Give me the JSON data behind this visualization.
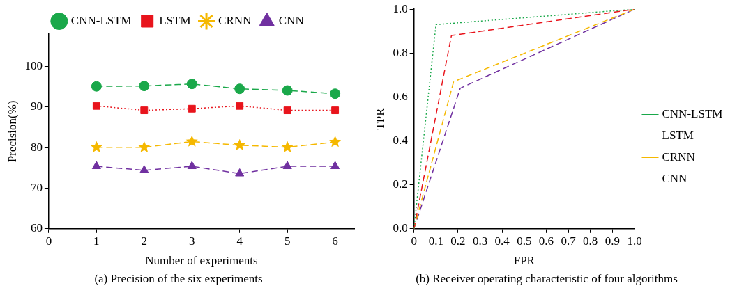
{
  "chart_data": [
    {
      "type": "line",
      "title": "(a) Precision of the six experiments",
      "xlabel": "Number of experiments",
      "ylabel": "Precision(%)",
      "x": [
        1,
        2,
        3,
        4,
        5,
        6
      ],
      "xlim": [
        0,
        6.4
      ],
      "xticks": [
        0,
        1,
        2,
        3,
        4,
        5,
        6
      ],
      "ylim": [
        60,
        108
      ],
      "yticks": [
        60,
        70,
        80,
        90,
        100
      ],
      "grid": false,
      "legend": "top",
      "series": [
        {
          "name": "CNN-LSTM",
          "color": "#1aa84a",
          "marker": "circle",
          "line_style": "dashed",
          "values": [
            95.1,
            95.2,
            95.7,
            94.5,
            94.1,
            93.3
          ]
        },
        {
          "name": "LSTM",
          "color": "#e8141c",
          "marker": "square",
          "line_style": "dotted",
          "values": [
            90.3,
            89.2,
            89.6,
            90.3,
            89.2,
            89.2
          ]
        },
        {
          "name": "CRNN",
          "color": "#f5b800",
          "marker": "star",
          "line_style": "dashed",
          "values": [
            80.1,
            80.1,
            81.5,
            80.6,
            80.1,
            81.4
          ]
        },
        {
          "name": "CNN",
          "color": "#7030a0",
          "marker": "triangle",
          "line_style": "dashed",
          "values": [
            75.4,
            74.4,
            75.4,
            73.6,
            75.4,
            75.4
          ]
        }
      ]
    },
    {
      "type": "line",
      "title": "(b) Receiver operating characteristic of four algorithms",
      "xlabel": "FPR",
      "ylabel": "TPR",
      "xlim": [
        0,
        1
      ],
      "xticks": [
        0,
        0.1,
        0.2,
        0.3,
        0.4,
        0.5,
        0.6,
        0.7,
        0.8,
        0.9,
        {
          "value": 1,
          "label": "1.0"
        }
      ],
      "ylim": [
        0,
        1
      ],
      "yticks": [
        {
          "value": 0,
          "label": "0.0"
        },
        0.2,
        0.4,
        0.6,
        0.8,
        {
          "value": 1,
          "label": "1.0"
        }
      ],
      "grid": false,
      "legend": "right",
      "marker": "none",
      "series": [
        {
          "name": "CNN-LSTM",
          "color": "#1aa84a",
          "line_style": "dotted",
          "x": [
            0,
            0.1,
            1
          ],
          "values": [
            0,
            0.93,
            1
          ]
        },
        {
          "name": "LSTM",
          "color": "#e8141c",
          "line_style": "dashed",
          "x": [
            0,
            0.17,
            1
          ],
          "values": [
            0,
            0.88,
            1
          ]
        },
        {
          "name": "CRNN",
          "color": "#f5b800",
          "line_style": "dashed",
          "x": [
            0,
            0.18,
            1
          ],
          "values": [
            0,
            0.67,
            1
          ]
        },
        {
          "name": "CNN",
          "color": "#7030a0",
          "line_style": "dashed",
          "x": [
            0,
            0.21,
            1
          ],
          "values": [
            0,
            0.64,
            1
          ]
        }
      ]
    }
  ]
}
